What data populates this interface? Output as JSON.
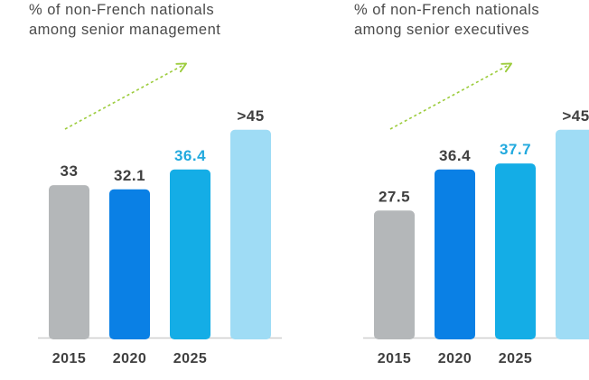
{
  "colors": {
    "gray": "#b4b7b9",
    "blue": "#0a80e5",
    "cyan": "#14ade6",
    "light": "#9fdcf5",
    "label_default": "#3f3f3f",
    "label_highlight": "#21a9de",
    "trend_arrow": "#9ccc3c",
    "axis": "#cfcfcf"
  },
  "chart_data": [
    {
      "type": "bar",
      "title_lines": [
        "% of non-French nationals",
        "among senior management"
      ],
      "categories": [
        "2015",
        "2020",
        "2025",
        ""
      ],
      "values": [
        33,
        32.1,
        36.4,
        45
      ],
      "value_labels": [
        "33",
        "32.1",
        "36.4",
        ">45"
      ],
      "bar_colors": [
        "gray",
        "blue",
        "cyan",
        "light"
      ],
      "label_colors": [
        "label_default",
        "label_default",
        "label_highlight",
        "label_default"
      ],
      "trend_arrow": true,
      "ylim": [
        0,
        51.6
      ]
    },
    {
      "type": "bar",
      "title_lines": [
        "% of non-French nationals",
        "among senior executives"
      ],
      "categories": [
        "2015",
        "2020",
        "2025",
        ""
      ],
      "values": [
        27.5,
        36.4,
        37.7,
        45
      ],
      "value_labels": [
        "27.5",
        "36.4",
        "37.7",
        ">45"
      ],
      "bar_colors": [
        "gray",
        "blue",
        "cyan",
        "light"
      ],
      "label_colors": [
        "label_default",
        "label_default",
        "label_highlight",
        "label_default"
      ],
      "trend_arrow": true,
      "ylim": [
        0,
        51.6
      ]
    }
  ]
}
